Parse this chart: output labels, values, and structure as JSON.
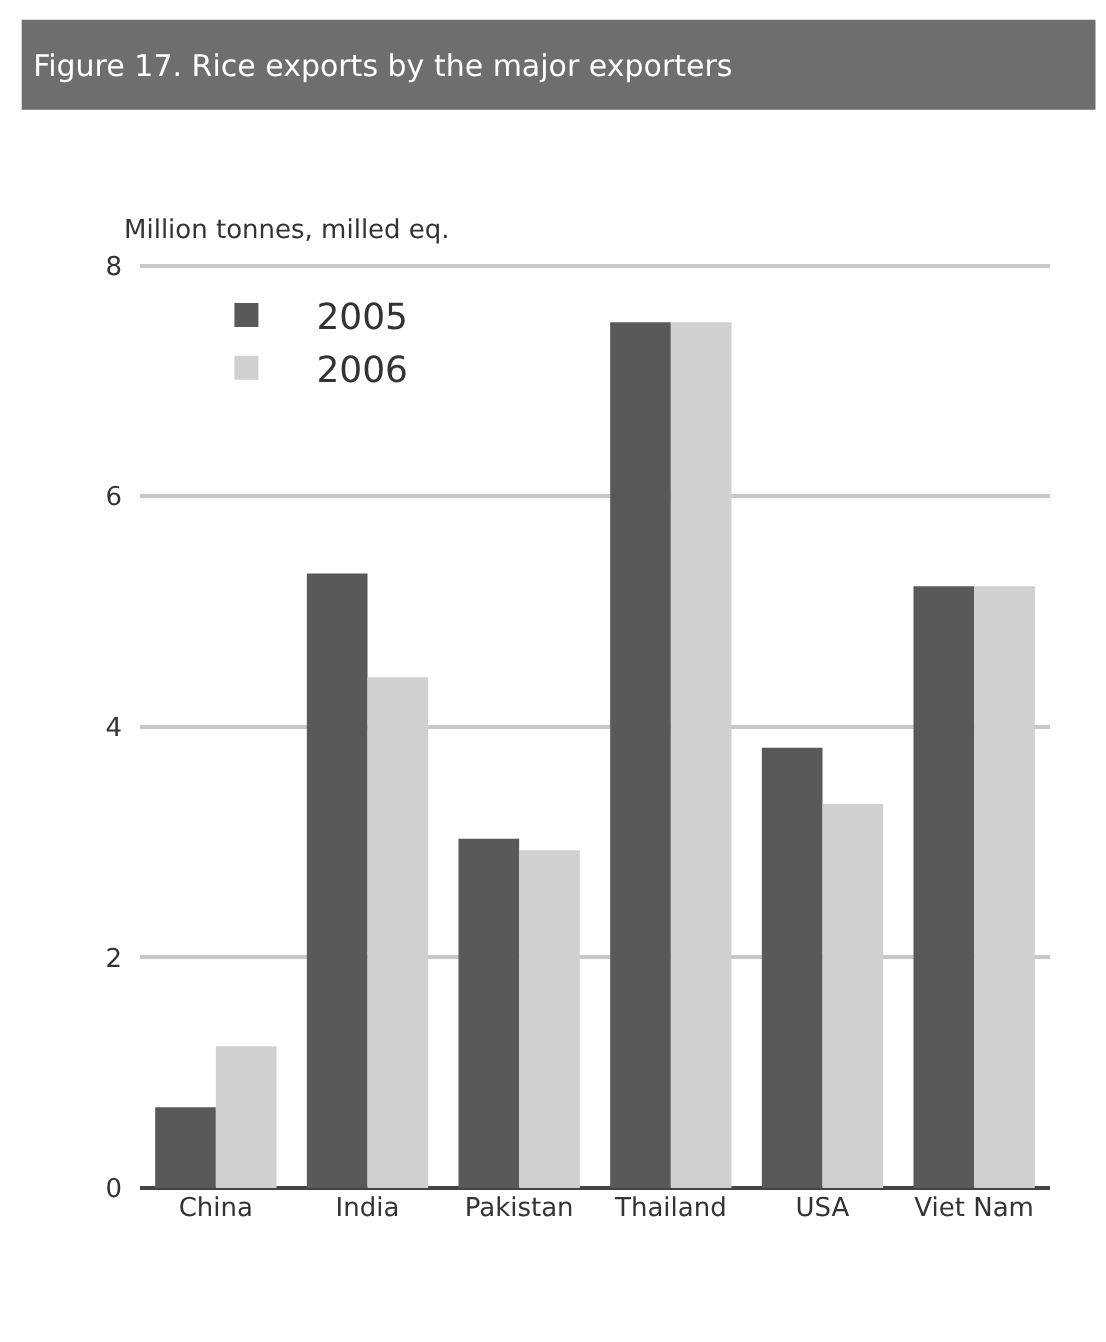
{
  "chart_data": {
    "type": "bar",
    "title": "Figure 17. Rice exports by the major exporters",
    "ylabel": "Million tonnes, milled eq.",
    "categories": [
      "China",
      "India",
      "Pakistan",
      "Thailand",
      "USA",
      "Viet Nam"
    ],
    "series": [
      {
        "name": "2005",
        "color": "#595959",
        "values": [
          0.7,
          5.33,
          3.03,
          7.51,
          3.82,
          5.22
        ]
      },
      {
        "name": "2006",
        "color": "#d0d0d0",
        "values": [
          1.23,
          4.43,
          2.93,
          7.51,
          3.33,
          5.22
        ]
      }
    ],
    "ylim": [
      0,
      8.05
    ],
    "yticks": [
      0,
      2,
      4,
      6,
      8
    ],
    "grid": "y",
    "legend": "top left"
  }
}
